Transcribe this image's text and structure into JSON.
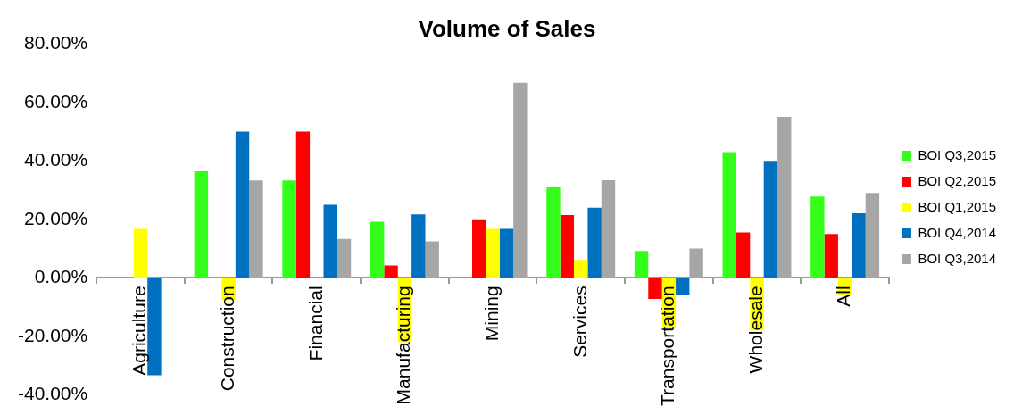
{
  "chart_data": {
    "type": "bar",
    "title": "Volume of Sales",
    "categories": [
      "Agriculture",
      "Construction",
      "Financial",
      "Manufacturing",
      "Mining",
      "Services",
      "Transportation",
      "Wholesale",
      "All"
    ],
    "series": [
      {
        "name": "BOI Q3,2015",
        "color": "#33ff1a",
        "values": [
          null,
          36.4,
          33.3,
          19.2,
          null,
          31,
          9.2,
          43,
          27.8
        ]
      },
      {
        "name": "BOI Q2,2015",
        "color": "#ff0000",
        "values": [
          null,
          null,
          50,
          4.2,
          20,
          21.5,
          -7.2,
          15.5,
          15
        ]
      },
      {
        "name": "BOI Q1,2015",
        "color": "#ffff00",
        "values": [
          16.7,
          -7.7,
          null,
          -22,
          16.7,
          6.1,
          -17,
          -18,
          -5.7
        ]
      },
      {
        "name": "BOI Q4,2014",
        "color": "#0070c0",
        "values": [
          -33.3,
          50,
          25,
          21.7,
          16.7,
          24,
          -6,
          40,
          22.1
        ]
      },
      {
        "name": "BOI Q3,2014",
        "color": "#a6a6a6",
        "values": [
          null,
          33.3,
          13.3,
          12.5,
          66.7,
          33.4,
          10,
          55,
          29
        ]
      }
    ],
    "ylim": [
      -40,
      80
    ],
    "yticks": [
      {
        "value": -40,
        "label": "-40.00%"
      },
      {
        "value": -20,
        "label": "-20.00%"
      },
      {
        "value": 0,
        "label": "0.00%"
      },
      {
        "value": 20,
        "label": "20.00%"
      },
      {
        "value": 40,
        "label": "40.00%"
      },
      {
        "value": 60,
        "label": "60.00%"
      },
      {
        "value": 80,
        "label": "80.00%"
      }
    ],
    "grid": false,
    "legend": "right"
  }
}
